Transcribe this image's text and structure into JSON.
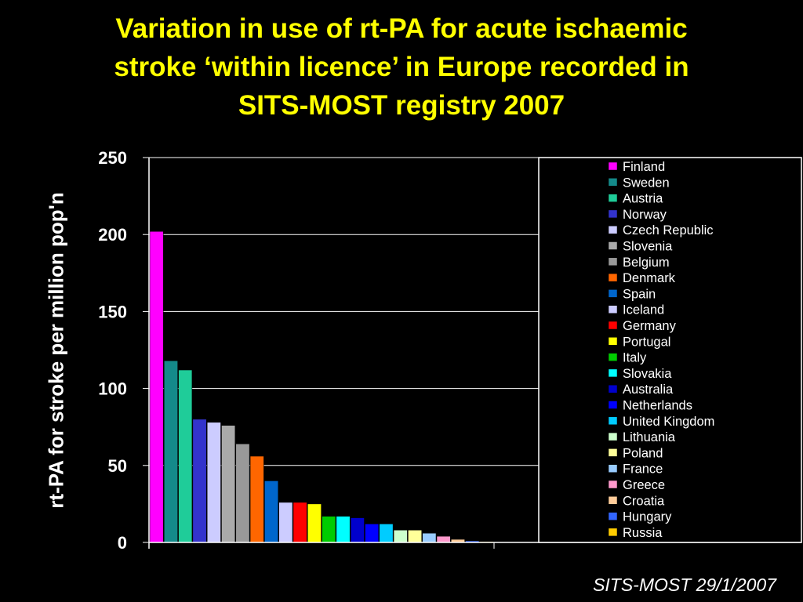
{
  "title_lines": [
    "Variation in use of rt-PA for acute ischaemic",
    "stroke ‘within licence’ in Europe recorded in",
    "SITS-MOST registry 2007"
  ],
  "source_note": "SITS-MOST 29/1/2007",
  "chart_data": {
    "type": "bar",
    "title": "Variation in use of rt-PA for acute ischaemic stroke ‘within licence’ in Europe recorded in SITS-MOST registry 2007",
    "xlabel": "",
    "ylabel": "rt-PA for stroke per million pop'n",
    "ylim": [
      0,
      250
    ],
    "yticks": [
      0,
      50,
      100,
      150,
      200,
      250
    ],
    "grid": true,
    "legend_position": "right",
    "series": [
      {
        "name": "Finland",
        "value": 202,
        "color": "#ff00ff"
      },
      {
        "name": "Sweden",
        "value": 118,
        "color": "#148a8a"
      },
      {
        "name": "Austria",
        "value": 112,
        "color": "#1fcc99"
      },
      {
        "name": "Norway",
        "value": 80,
        "color": "#3333cc"
      },
      {
        "name": "Czech Republic",
        "value": 78,
        "color": "#ccccff"
      },
      {
        "name": "Slovenia",
        "value": 76,
        "color": "#aaaaaa"
      },
      {
        "name": "Belgium",
        "value": 64,
        "color": "#999999"
      },
      {
        "name": "Denmark",
        "value": 56,
        "color": "#ff6600"
      },
      {
        "name": "Spain",
        "value": 40,
        "color": "#0066cc"
      },
      {
        "name": "Iceland",
        "value": 26,
        "color": "#ccccff"
      },
      {
        "name": "Germany",
        "value": 26,
        "color": "#ff0000"
      },
      {
        "name": "Portugal",
        "value": 25,
        "color": "#ffff00"
      },
      {
        "name": "Italy",
        "value": 17,
        "color": "#00cc00"
      },
      {
        "name": "Slovakia",
        "value": 17,
        "color": "#00ffff"
      },
      {
        "name": "Australia",
        "value": 16,
        "color": "#0000cc"
      },
      {
        "name": "Netherlands",
        "value": 12,
        "color": "#0000ff"
      },
      {
        "name": "United Kingdom",
        "value": 12,
        "color": "#00ccff"
      },
      {
        "name": "Lithuania",
        "value": 8,
        "color": "#ccffcc"
      },
      {
        "name": "Poland",
        "value": 8,
        "color": "#ffff99"
      },
      {
        "name": "France",
        "value": 6,
        "color": "#99ccff"
      },
      {
        "name": "Greece",
        "value": 4,
        "color": "#ff99cc"
      },
      {
        "name": "Croatia",
        "value": 2,
        "color": "#ffcc99"
      },
      {
        "name": "Hungary",
        "value": 1,
        "color": "#3366ff"
      },
      {
        "name": "Russia",
        "value": 0.5,
        "color": "#ffcc00"
      }
    ]
  }
}
